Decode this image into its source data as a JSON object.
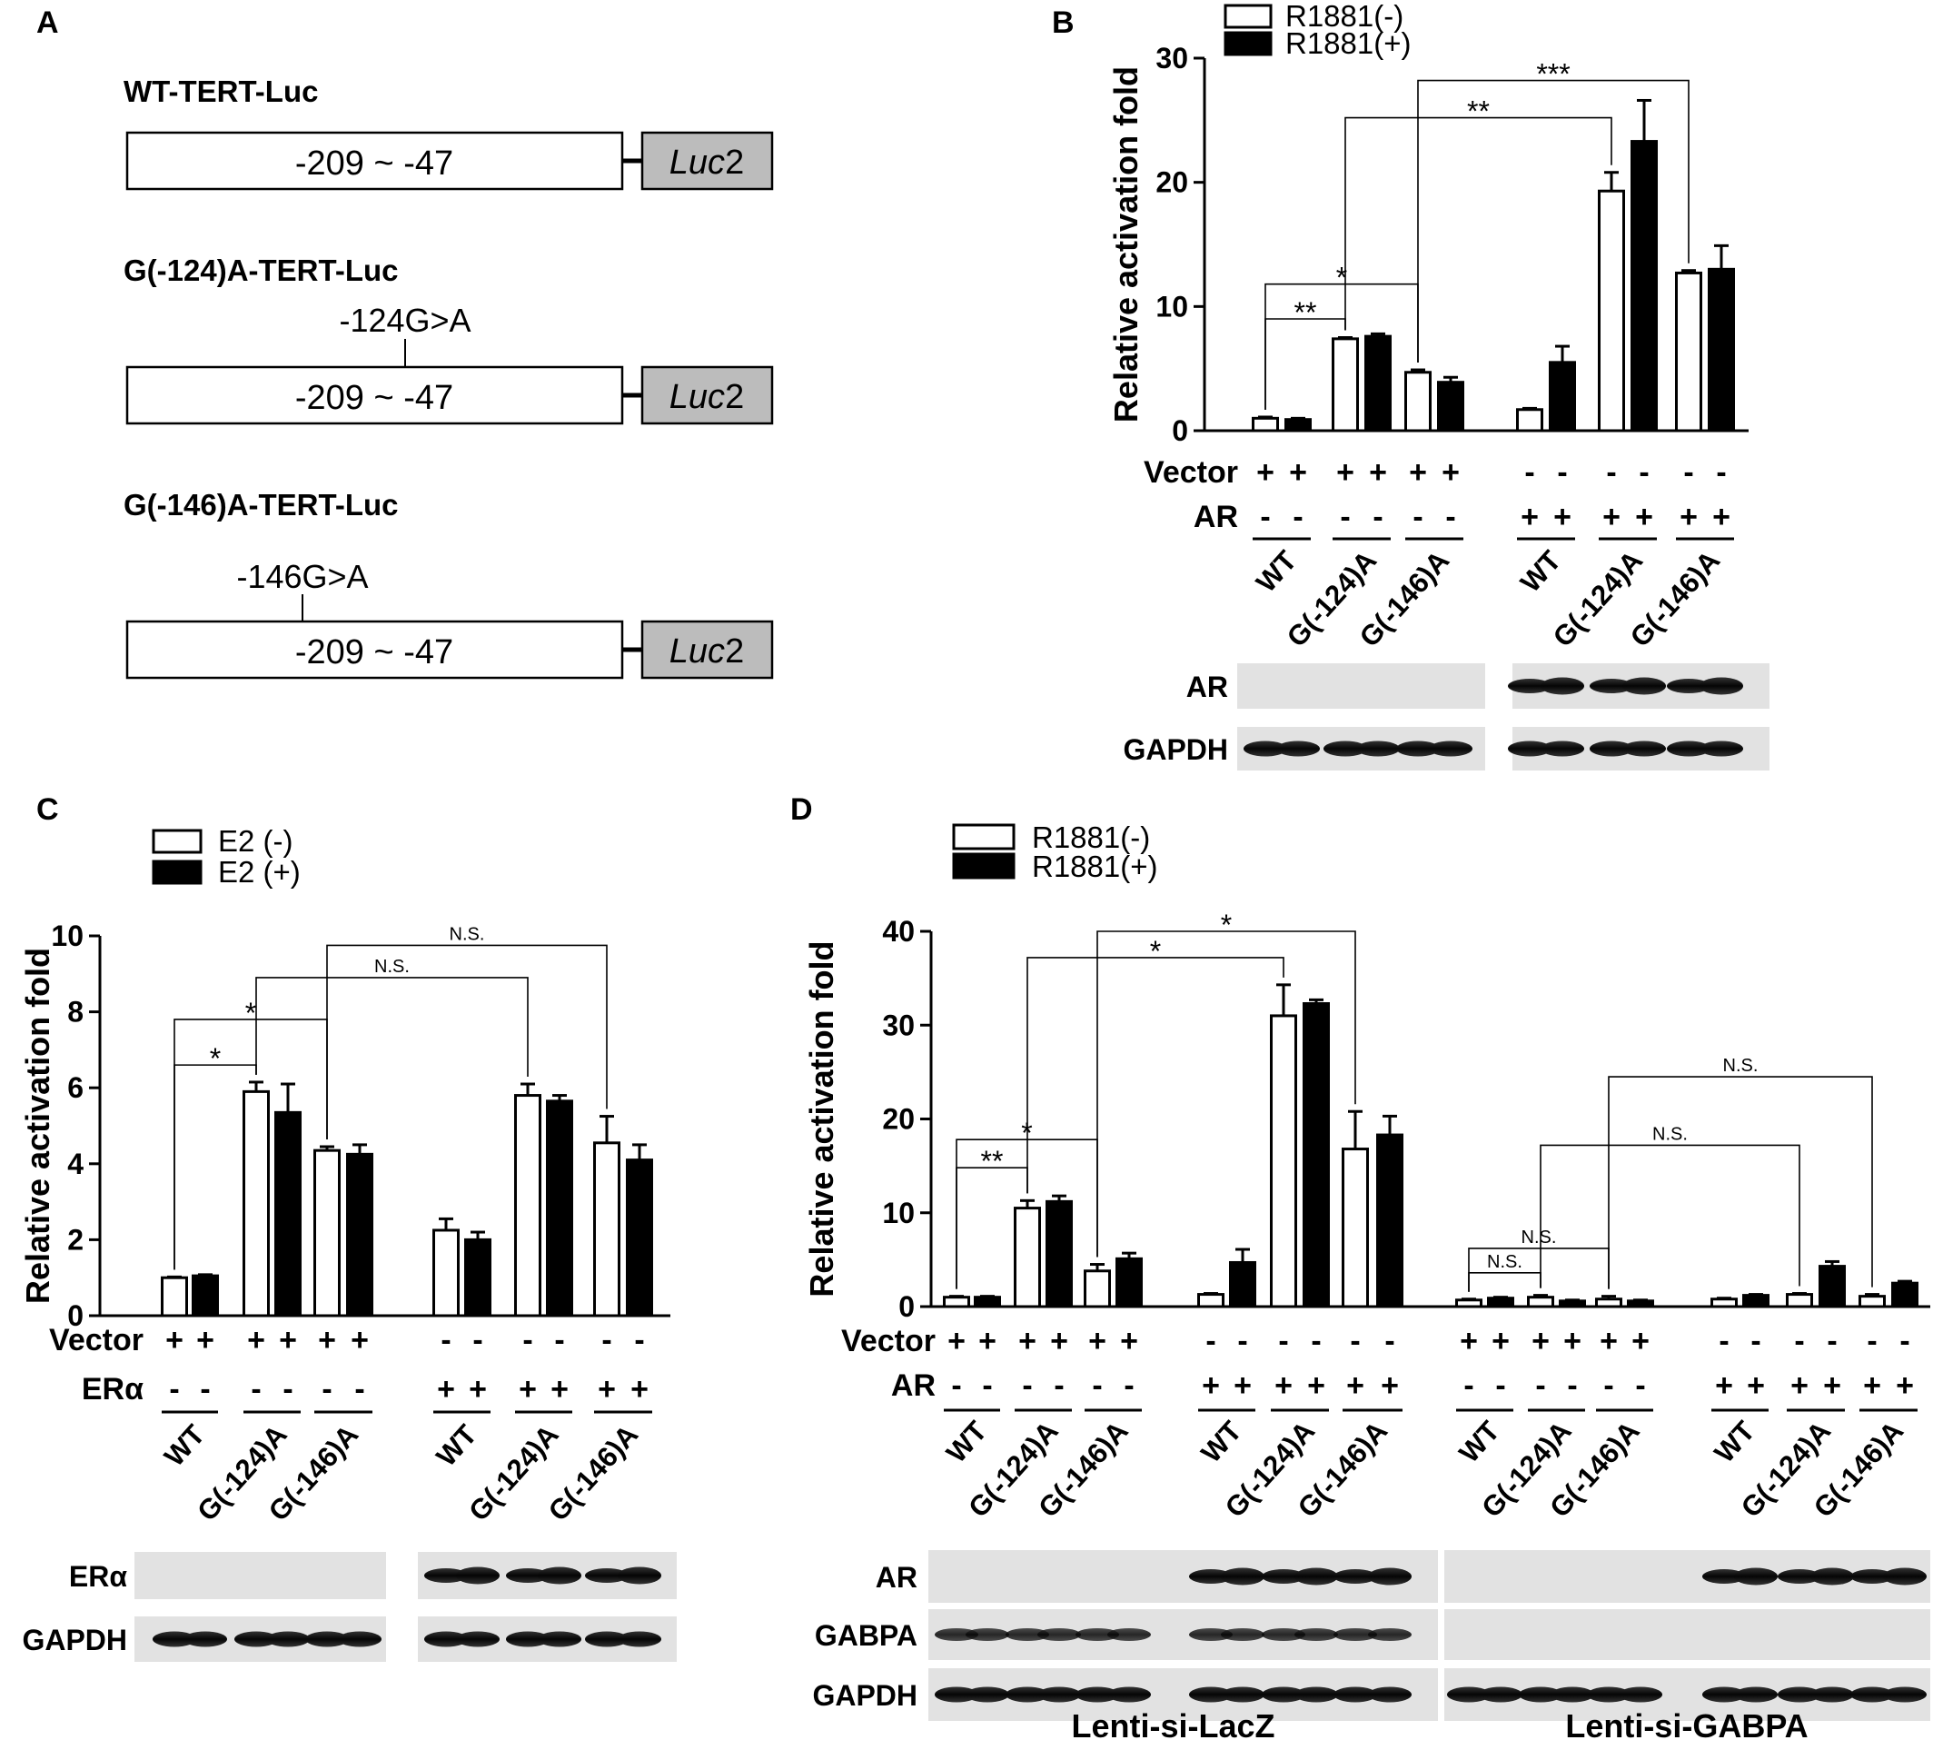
{
  "panel_a": {
    "label": "A",
    "constructs": [
      {
        "name": "WT-TERT-Luc",
        "box_text": "-209 ~ -47",
        "luc_prefix": "Luc",
        "luc_suffix": "2",
        "mutation": ""
      },
      {
        "name": "G(-124)A-TERT-Luc",
        "box_text": "-209 ~ -47",
        "luc_prefix": "Luc",
        "luc_suffix": "2",
        "mutation": "-124G>A"
      },
      {
        "name": "G(-146)A-TERT-Luc",
        "box_text": "-209 ~ -47",
        "luc_prefix": "Luc",
        "luc_suffix": "2",
        "mutation": "-146G>A"
      }
    ]
  },
  "panel_labels": {
    "b": "B",
    "c": "C",
    "d": "D"
  },
  "chart_data": [
    {
      "panel": "B",
      "type": "bar",
      "ylabel": "Relative activation fold",
      "ylim": [
        0,
        30
      ],
      "yticks": [
        0,
        10,
        20,
        30
      ],
      "series": [
        {
          "name": "R1881(-)",
          "fill": "white"
        },
        {
          "name": "R1881(+)",
          "fill": "black"
        }
      ],
      "groups": [
        {
          "label": "WT",
          "values": [
            1.0,
            0.9
          ],
          "errors": [
            0.1,
            0.1
          ]
        },
        {
          "label": "G(-124)A",
          "values": [
            7.4,
            7.6
          ],
          "errors": [
            0.1,
            0.2
          ]
        },
        {
          "label": "G(-146)A",
          "values": [
            4.7,
            3.9
          ],
          "errors": [
            0.2,
            0.4
          ]
        },
        {
          "label": "WT",
          "values": [
            1.7,
            5.5
          ],
          "errors": [
            0.1,
            1.3
          ]
        },
        {
          "label": "G(-124)A",
          "values": [
            19.3,
            23.3
          ],
          "errors": [
            1.5,
            3.3
          ]
        },
        {
          "label": "G(-146)A",
          "values": [
            12.7,
            13.0
          ],
          "errors": [
            0.2,
            1.9
          ]
        }
      ],
      "significance": [
        {
          "from": 0,
          "to": 2,
          "y": 9.0,
          "label": "**"
        },
        {
          "from": 0,
          "to": 4,
          "y": 11.8,
          "label": "*"
        },
        {
          "from": 2,
          "to": 8,
          "y": 25.2,
          "label": "**"
        },
        {
          "from": 4,
          "to": 10,
          "y": 28.2,
          "label": "***"
        }
      ],
      "rows": [
        {
          "label": "Vector",
          "signs": [
            "+",
            "+",
            "+",
            "+",
            "+",
            "+",
            "-",
            "-",
            "-",
            "-",
            "-",
            "-"
          ]
        },
        {
          "label": "AR",
          "signs": [
            "-",
            "-",
            "-",
            "-",
            "-",
            "-",
            "+",
            "+",
            "+",
            "+",
            "+",
            "+"
          ]
        }
      ],
      "blots": [
        {
          "label": "AR"
        },
        {
          "label": "GAPDH"
        }
      ]
    },
    {
      "panel": "C",
      "type": "bar",
      "ylabel": "Relative activation fold",
      "ylim": [
        0,
        10
      ],
      "yticks": [
        0,
        2,
        4,
        6,
        8,
        10
      ],
      "series": [
        {
          "name": "E2 (-)",
          "fill": "white"
        },
        {
          "name": "E2 (+)",
          "fill": "black"
        }
      ],
      "groups": [
        {
          "label": "WT",
          "values": [
            1.0,
            1.05
          ],
          "errors": [
            0.02,
            0.03
          ]
        },
        {
          "label": "G(-124)A",
          "values": [
            5.9,
            5.35
          ],
          "errors": [
            0.25,
            0.75
          ]
        },
        {
          "label": "G(-146)A",
          "values": [
            4.35,
            4.25
          ],
          "errors": [
            0.1,
            0.25
          ]
        },
        {
          "label": "WT",
          "values": [
            2.25,
            2.0
          ],
          "errors": [
            0.3,
            0.2
          ]
        },
        {
          "label": "G(-124)A",
          "values": [
            5.8,
            5.65
          ],
          "errors": [
            0.3,
            0.15
          ]
        },
        {
          "label": "G(-146)A",
          "values": [
            4.55,
            4.1
          ],
          "errors": [
            0.7,
            0.4
          ]
        }
      ],
      "significance": [
        {
          "from": 0,
          "to": 2,
          "y": 6.6,
          "label": "*"
        },
        {
          "from": 0,
          "to": 4,
          "y": 7.8,
          "label": "*"
        },
        {
          "from": 2,
          "to": 8,
          "y": 8.9,
          "label": "N.S."
        },
        {
          "from": 4,
          "to": 10,
          "y": 9.75,
          "label": "N.S."
        }
      ],
      "rows": [
        {
          "label": "Vector",
          "signs": [
            "+",
            "+",
            "+",
            "+",
            "+",
            "+",
            "-",
            "-",
            "-",
            "-",
            "-",
            "-"
          ]
        },
        {
          "label": "ERα",
          "signs": [
            "-",
            "-",
            "-",
            "-",
            "-",
            "-",
            "+",
            "+",
            "+",
            "+",
            "+",
            "+"
          ]
        }
      ],
      "blots": [
        {
          "label": "ERα"
        },
        {
          "label": "GAPDH"
        }
      ]
    },
    {
      "panel": "D",
      "type": "bar",
      "ylabel": "Relative activation fold",
      "ylim": [
        0,
        40
      ],
      "yticks": [
        0,
        10,
        20,
        30,
        40
      ],
      "series": [
        {
          "name": "R1881(-)",
          "fill": "white"
        },
        {
          "name": "R1881(+)",
          "fill": "black"
        }
      ],
      "groups": [
        {
          "label": "WT",
          "values": [
            1.0,
            1.0
          ],
          "errors": [
            0.1,
            0.1
          ]
        },
        {
          "label": "G(-124)A",
          "values": [
            10.5,
            11.2
          ],
          "errors": [
            0.8,
            0.6
          ]
        },
        {
          "label": "G(-146)A",
          "values": [
            3.8,
            5.1
          ],
          "errors": [
            0.7,
            0.6
          ]
        },
        {
          "label": "WT",
          "values": [
            1.3,
            4.7
          ],
          "errors": [
            0.1,
            1.4
          ]
        },
        {
          "label": "G(-124)A",
          "values": [
            31.0,
            32.3
          ],
          "errors": [
            3.3,
            0.4
          ]
        },
        {
          "label": "G(-146)A",
          "values": [
            16.8,
            18.3
          ],
          "errors": [
            4.0,
            2.0
          ]
        },
        {
          "label": "WT",
          "values": [
            0.7,
            0.9
          ],
          "errors": [
            0.1,
            0.1
          ]
        },
        {
          "label": "G(-124)A",
          "values": [
            1.0,
            0.6
          ],
          "errors": [
            0.2,
            0.1
          ]
        },
        {
          "label": "G(-146)A",
          "values": [
            0.8,
            0.6
          ],
          "errors": [
            0.3,
            0.1
          ]
        },
        {
          "label": "WT",
          "values": [
            0.8,
            1.2
          ],
          "errors": [
            0.1,
            0.1
          ]
        },
        {
          "label": "G(-124)A",
          "values": [
            1.3,
            4.3
          ],
          "errors": [
            0.1,
            0.5
          ]
        },
        {
          "label": "G(-146)A",
          "values": [
            1.1,
            2.5
          ],
          "errors": [
            0.2,
            0.2
          ]
        }
      ],
      "significance": [
        {
          "from": 0,
          "to": 2,
          "y": 14.8,
          "label": "**"
        },
        {
          "from": 0,
          "to": 4,
          "y": 17.8,
          "label": "*"
        },
        {
          "from": 2,
          "to": 8,
          "y": 37.2,
          "label": "*"
        },
        {
          "from": 4,
          "to": 10,
          "y": 40.0,
          "label": "*"
        },
        {
          "from": 12,
          "to": 14,
          "y": 3.6,
          "label": "N.S."
        },
        {
          "from": 12,
          "to": 16,
          "y": 6.2,
          "label": "N.S."
        },
        {
          "from": 14,
          "to": 20,
          "y": 17.2,
          "label": "N.S."
        },
        {
          "from": 16,
          "to": 22,
          "y": 24.5,
          "label": "N.S."
        }
      ],
      "rows": [
        {
          "label": "Vector",
          "signs": [
            "+",
            "+",
            "+",
            "+",
            "+",
            "+",
            "-",
            "-",
            "-",
            "-",
            "-",
            "-",
            "+",
            "+",
            "+",
            "+",
            "+",
            "+",
            "-",
            "-",
            "-",
            "-",
            "-",
            "-"
          ]
        },
        {
          "label": "AR",
          "signs": [
            "-",
            "-",
            "-",
            "-",
            "-",
            "-",
            "+",
            "+",
            "+",
            "+",
            "+",
            "+",
            "-",
            "-",
            "-",
            "-",
            "-",
            "-",
            "+",
            "+",
            "+",
            "+",
            "+",
            "+"
          ]
        }
      ],
      "blots": [
        {
          "label": "AR"
        },
        {
          "label": "GABPA"
        },
        {
          "label": "GAPDH"
        }
      ],
      "conditions": [
        "Lenti-si-LacZ",
        "Lenti-si-GABPA"
      ]
    }
  ]
}
